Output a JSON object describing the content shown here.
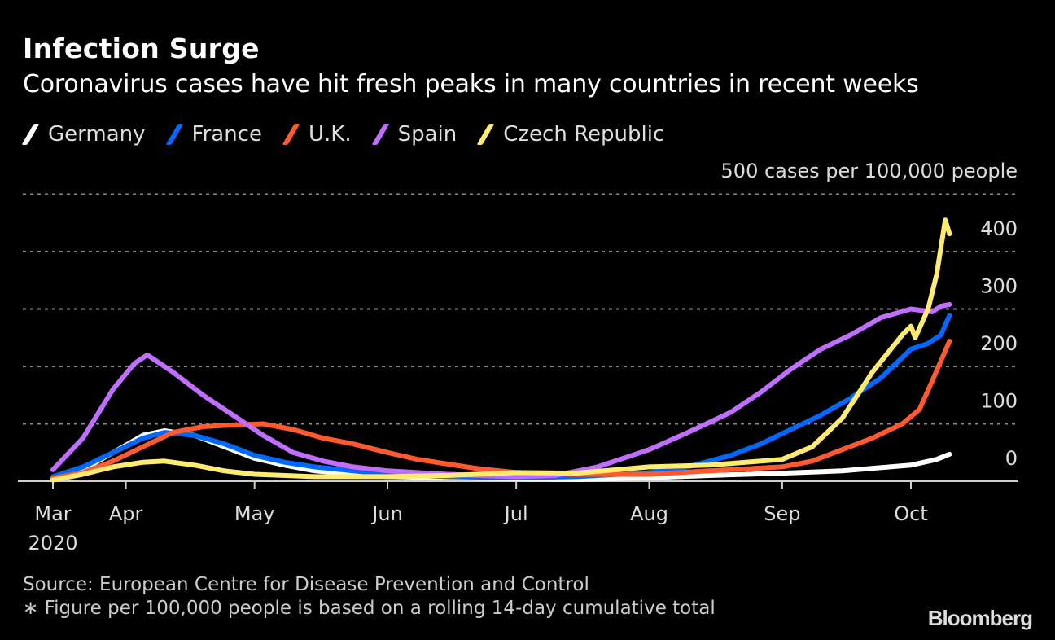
{
  "header": {
    "title": "Infection Surge",
    "subtitle": "Coronavirus cases have hit fresh peaks in many countries in recent weeks"
  },
  "footer": {
    "source": "Source: European Centre for Disease Prevention and Control",
    "footnote": "∗ Figure per 100,000 people is based on a rolling 14-day cumulative total",
    "brand": "Bloomberg"
  },
  "chart_data": {
    "type": "line",
    "title": "Infection Surge",
    "subtitle": "Coronavirus cases have hit fresh peaks in many countries in recent weeks",
    "xlabel": "",
    "ylabel": "cases per 100,000 people",
    "unit_label": "500 cases per 100,000 people",
    "xlim": [
      "2020-03-15",
      "2020-10-10"
    ],
    "ylim": [
      0,
      500
    ],
    "yticks": [
      0,
      100,
      200,
      300,
      400,
      500
    ],
    "ytick_labels": [
      "0",
      "100",
      "200",
      "300",
      "400",
      "500 cases per 100,000 people"
    ],
    "xticks": [
      {
        "date": "2020-03-15",
        "label": "Mar",
        "sublabel": "2020"
      },
      {
        "date": "2020-04-01",
        "label": "Apr"
      },
      {
        "date": "2020-05-01",
        "label": "May"
      },
      {
        "date": "2020-06-01",
        "label": "Jun"
      },
      {
        "date": "2020-07-01",
        "label": "Jul"
      },
      {
        "date": "2020-08-01",
        "label": "Aug"
      },
      {
        "date": "2020-09-01",
        "label": "Sep"
      },
      {
        "date": "2020-10-01",
        "label": "Oct"
      }
    ],
    "grid": true,
    "legend_position": "top-left",
    "series": [
      {
        "name": "Germany",
        "color": "#FFFFFF",
        "points": [
          [
            "2020-03-15",
            5
          ],
          [
            "2020-03-22",
            20
          ],
          [
            "2020-03-29",
            50
          ],
          [
            "2020-04-05",
            80
          ],
          [
            "2020-04-10",
            88
          ],
          [
            "2020-04-17",
            80
          ],
          [
            "2020-04-24",
            60
          ],
          [
            "2020-05-01",
            40
          ],
          [
            "2020-05-08",
            28
          ],
          [
            "2020-05-15",
            18
          ],
          [
            "2020-06-01",
            8
          ],
          [
            "2020-06-15",
            6
          ],
          [
            "2020-07-01",
            4
          ],
          [
            "2020-07-15",
            3
          ],
          [
            "2020-08-01",
            6
          ],
          [
            "2020-08-15",
            10
          ],
          [
            "2020-09-01",
            14
          ],
          [
            "2020-09-15",
            18
          ],
          [
            "2020-10-01",
            28
          ],
          [
            "2020-10-07",
            38
          ],
          [
            "2020-10-10",
            47
          ]
        ]
      },
      {
        "name": "France",
        "color": "#0068FF",
        "points": [
          [
            "2020-03-15",
            8
          ],
          [
            "2020-03-22",
            25
          ],
          [
            "2020-03-29",
            50
          ],
          [
            "2020-04-05",
            75
          ],
          [
            "2020-04-10",
            85
          ],
          [
            "2020-04-17",
            80
          ],
          [
            "2020-04-24",
            65
          ],
          [
            "2020-05-01",
            45
          ],
          [
            "2020-05-08",
            33
          ],
          [
            "2020-05-15",
            25
          ],
          [
            "2020-06-01",
            12
          ],
          [
            "2020-06-15",
            8
          ],
          [
            "2020-07-01",
            6
          ],
          [
            "2020-07-15",
            8
          ],
          [
            "2020-08-01",
            15
          ],
          [
            "2020-08-10",
            25
          ],
          [
            "2020-08-20",
            45
          ],
          [
            "2020-08-27",
            65
          ],
          [
            "2020-09-03",
            90
          ],
          [
            "2020-09-10",
            115
          ],
          [
            "2020-09-17",
            145
          ],
          [
            "2020-09-24",
            180
          ],
          [
            "2020-10-01",
            230
          ],
          [
            "2020-10-05",
            240
          ],
          [
            "2020-10-08",
            255
          ],
          [
            "2020-10-10",
            289
          ]
        ]
      },
      {
        "name": "U.K.",
        "color": "#FF5A2D",
        "points": [
          [
            "2020-03-15",
            5
          ],
          [
            "2020-03-22",
            15
          ],
          [
            "2020-03-29",
            35
          ],
          [
            "2020-04-05",
            60
          ],
          [
            "2020-04-12",
            85
          ],
          [
            "2020-04-19",
            95
          ],
          [
            "2020-04-26",
            98
          ],
          [
            "2020-05-03",
            100
          ],
          [
            "2020-05-10",
            90
          ],
          [
            "2020-05-17",
            75
          ],
          [
            "2020-05-24",
            65
          ],
          [
            "2020-06-01",
            50
          ],
          [
            "2020-06-08",
            38
          ],
          [
            "2020-06-15",
            30
          ],
          [
            "2020-06-22",
            22
          ],
          [
            "2020-07-01",
            15
          ],
          [
            "2020-07-15",
            12
          ],
          [
            "2020-08-01",
            12
          ],
          [
            "2020-08-15",
            18
          ],
          [
            "2020-09-01",
            25
          ],
          [
            "2020-09-08",
            35
          ],
          [
            "2020-09-15",
            55
          ],
          [
            "2020-09-22",
            75
          ],
          [
            "2020-09-29",
            100
          ],
          [
            "2020-10-03",
            125
          ],
          [
            "2020-10-06",
            175
          ],
          [
            "2020-10-10",
            244
          ]
        ]
      },
      {
        "name": "Spain",
        "color": "#C06EFF",
        "points": [
          [
            "2020-03-15",
            20
          ],
          [
            "2020-03-22",
            75
          ],
          [
            "2020-03-29",
            160
          ],
          [
            "2020-04-03",
            205
          ],
          [
            "2020-04-06",
            220
          ],
          [
            "2020-04-12",
            190
          ],
          [
            "2020-04-19",
            150
          ],
          [
            "2020-04-26",
            115
          ],
          [
            "2020-05-03",
            80
          ],
          [
            "2020-05-10",
            50
          ],
          [
            "2020-05-17",
            35
          ],
          [
            "2020-05-24",
            25
          ],
          [
            "2020-06-01",
            18
          ],
          [
            "2020-06-15",
            12
          ],
          [
            "2020-07-01",
            8
          ],
          [
            "2020-07-10",
            10
          ],
          [
            "2020-07-20",
            25
          ],
          [
            "2020-08-01",
            55
          ],
          [
            "2020-08-10",
            85
          ],
          [
            "2020-08-20",
            120
          ],
          [
            "2020-08-27",
            155
          ],
          [
            "2020-09-03",
            195
          ],
          [
            "2020-09-10",
            230
          ],
          [
            "2020-09-17",
            255
          ],
          [
            "2020-09-24",
            285
          ],
          [
            "2020-10-01",
            300
          ],
          [
            "2020-10-06",
            295
          ],
          [
            "2020-10-08",
            305
          ],
          [
            "2020-10-10",
            308
          ]
        ]
      },
      {
        "name": "Czech Republic",
        "color": "#FFEB6E",
        "points": [
          [
            "2020-03-15",
            2
          ],
          [
            "2020-03-22",
            12
          ],
          [
            "2020-03-29",
            25
          ],
          [
            "2020-04-05",
            33
          ],
          [
            "2020-04-10",
            35
          ],
          [
            "2020-04-17",
            28
          ],
          [
            "2020-04-24",
            18
          ],
          [
            "2020-05-01",
            12
          ],
          [
            "2020-05-15",
            8
          ],
          [
            "2020-06-01",
            8
          ],
          [
            "2020-06-15",
            10
          ],
          [
            "2020-07-01",
            15
          ],
          [
            "2020-07-15",
            14
          ],
          [
            "2020-08-01",
            25
          ],
          [
            "2020-08-15",
            28
          ],
          [
            "2020-09-01",
            38
          ],
          [
            "2020-09-08",
            60
          ],
          [
            "2020-09-15",
            110
          ],
          [
            "2020-09-22",
            190
          ],
          [
            "2020-09-29",
            255
          ],
          [
            "2020-10-01",
            270
          ],
          [
            "2020-10-02",
            250
          ],
          [
            "2020-10-05",
            300
          ],
          [
            "2020-10-07",
            360
          ],
          [
            "2020-10-09",
            455
          ],
          [
            "2020-10-10",
            431
          ]
        ]
      }
    ]
  }
}
